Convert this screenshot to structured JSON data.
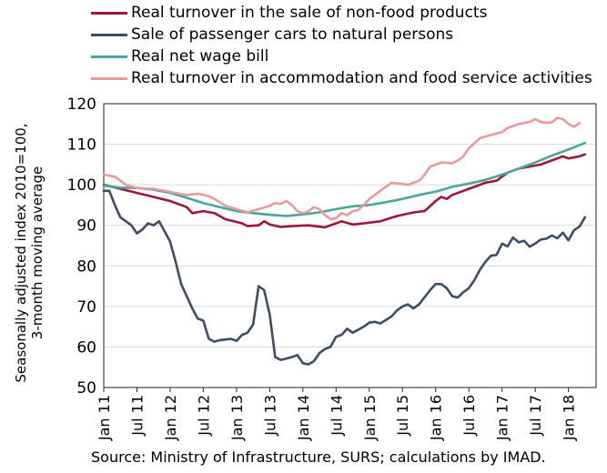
{
  "chart_data": {
    "type": "line",
    "ylabel_lines": [
      "Seasonally adjusted index 2010=100,",
      "3-month moving average"
    ],
    "ylim": [
      50,
      120
    ],
    "yticks": [
      50,
      60,
      70,
      80,
      90,
      100,
      110,
      120
    ],
    "xlim_months": [
      0,
      89
    ],
    "xticks": [
      {
        "m": 0,
        "label": "Jan 11"
      },
      {
        "m": 6,
        "label": "Jul 11"
      },
      {
        "m": 12,
        "label": "Jan 12"
      },
      {
        "m": 18,
        "label": "Jul 12"
      },
      {
        "m": 24,
        "label": "Jan 13"
      },
      {
        "m": 30,
        "label": "Jul 13"
      },
      {
        "m": 36,
        "label": "Jan 14"
      },
      {
        "m": 42,
        "label": "Jul 14"
      },
      {
        "m": 48,
        "label": "Jan 15"
      },
      {
        "m": 54,
        "label": "Jul 15"
      },
      {
        "m": 60,
        "label": "Jan 16"
      },
      {
        "m": 66,
        "label": "Jul 16"
      },
      {
        "m": 72,
        "label": "Jan 17"
      },
      {
        "m": 78,
        "label": "Jul 17"
      },
      {
        "m": 84,
        "label": "Jan 18"
      }
    ],
    "grid": "horizontal",
    "legend_position": "top",
    "series": [
      {
        "name": "Real turnover in the sale of non-food products",
        "color": "#a0153a",
        "points": [
          [
            0,
            100
          ],
          [
            3,
            99
          ],
          [
            6,
            98
          ],
          [
            9,
            97
          ],
          [
            12,
            96
          ],
          [
            15,
            94.5
          ],
          [
            16,
            93
          ],
          [
            18,
            93.5
          ],
          [
            20,
            93
          ],
          [
            22,
            91.5
          ],
          [
            25,
            90.5
          ],
          [
            26,
            89.8
          ],
          [
            28,
            90
          ],
          [
            29,
            91
          ],
          [
            30,
            90.2
          ],
          [
            32,
            89.6
          ],
          [
            34,
            89.8
          ],
          [
            37,
            90
          ],
          [
            40,
            89.5
          ],
          [
            43,
            91
          ],
          [
            45,
            90.2
          ],
          [
            47,
            90.5
          ],
          [
            50,
            91
          ],
          [
            53,
            92.3
          ],
          [
            56,
            93.2
          ],
          [
            58,
            93.5
          ],
          [
            60,
            96
          ],
          [
            61,
            97
          ],
          [
            62,
            96.5
          ],
          [
            63,
            97.5
          ],
          [
            65,
            98.5
          ],
          [
            67,
            99.5
          ],
          [
            69,
            100.5
          ],
          [
            71,
            101
          ],
          [
            72,
            102
          ],
          [
            73,
            103
          ],
          [
            75,
            104
          ],
          [
            77,
            104.5
          ],
          [
            79,
            105
          ],
          [
            81,
            106
          ],
          [
            82,
            106.5
          ],
          [
            83,
            107
          ],
          [
            84,
            106.5
          ],
          [
            86,
            107
          ],
          [
            87,
            107.5
          ]
        ]
      },
      {
        "name": "Sale of passenger cars to natural persons",
        "color": "#3d4d66",
        "points": [
          [
            0,
            98.5
          ],
          [
            1,
            98.5
          ],
          [
            2,
            95
          ],
          [
            3,
            92
          ],
          [
            5,
            90
          ],
          [
            6,
            88
          ],
          [
            7,
            89
          ],
          [
            8,
            90.5
          ],
          [
            9,
            90
          ],
          [
            10,
            91
          ],
          [
            11,
            88.5
          ],
          [
            12,
            86
          ],
          [
            13,
            81
          ],
          [
            14,
            75.5
          ],
          [
            16,
            69.5
          ],
          [
            17,
            67
          ],
          [
            18,
            66.5
          ],
          [
            19,
            62
          ],
          [
            20,
            61.3
          ],
          [
            21,
            61.7
          ],
          [
            23,
            62
          ],
          [
            24,
            61.5
          ],
          [
            25,
            63
          ],
          [
            26,
            63.5
          ],
          [
            27,
            65.5
          ],
          [
            28,
            75
          ],
          [
            29,
            74
          ],
          [
            30,
            68
          ],
          [
            31,
            57.5
          ],
          [
            32,
            56.8
          ],
          [
            34,
            57.5
          ],
          [
            35,
            58
          ],
          [
            36,
            56
          ],
          [
            37,
            55.7
          ],
          [
            38,
            56.5
          ],
          [
            39,
            58.5
          ],
          [
            40,
            59.5
          ],
          [
            41,
            60
          ],
          [
            42,
            62.5
          ],
          [
            43,
            63
          ],
          [
            44,
            64.5
          ],
          [
            45,
            63.5
          ],
          [
            47,
            65
          ],
          [
            48,
            66
          ],
          [
            49,
            66.2
          ],
          [
            50,
            65.8
          ],
          [
            52,
            67.5
          ],
          [
            53,
            69
          ],
          [
            54,
            70
          ],
          [
            55,
            70.5
          ],
          [
            56,
            69.5
          ],
          [
            57,
            70.5
          ],
          [
            59,
            74
          ],
          [
            60,
            75.5
          ],
          [
            61,
            75.5
          ],
          [
            62,
            74.5
          ],
          [
            63,
            72.5
          ],
          [
            64,
            72.2
          ],
          [
            65,
            73.5
          ],
          [
            66,
            74.5
          ],
          [
            67,
            76.5
          ],
          [
            68,
            79
          ],
          [
            69,
            81
          ],
          [
            70,
            82.5
          ],
          [
            71,
            82.7
          ],
          [
            72,
            85.5
          ],
          [
            73,
            84.8
          ],
          [
            74,
            87
          ],
          [
            75,
            85.8
          ],
          [
            76,
            86.2
          ],
          [
            77,
            84.7
          ],
          [
            78,
            85.5
          ],
          [
            79,
            86.5
          ],
          [
            80,
            86.7
          ],
          [
            81,
            87.5
          ],
          [
            82,
            86.8
          ],
          [
            83,
            88.2
          ],
          [
            84,
            86.3
          ],
          [
            85,
            88.8
          ],
          [
            86,
            89.7
          ],
          [
            87,
            92
          ]
        ]
      },
      {
        "name": "Real net wage bill",
        "color": "#4aa59b",
        "points": [
          [
            0,
            99.8
          ],
          [
            3,
            99.3
          ],
          [
            6,
            99.2
          ],
          [
            9,
            98.8
          ],
          [
            12,
            98
          ],
          [
            15,
            96.8
          ],
          [
            18,
            95.5
          ],
          [
            21,
            94.5
          ],
          [
            24,
            93.5
          ],
          [
            27,
            93
          ],
          [
            30,
            92.6
          ],
          [
            33,
            92.3
          ],
          [
            36,
            92.7
          ],
          [
            39,
            93.2
          ],
          [
            42,
            94
          ],
          [
            45,
            94.7
          ],
          [
            48,
            95
          ],
          [
            51,
            95.7
          ],
          [
            54,
            96.5
          ],
          [
            57,
            97.5
          ],
          [
            60,
            98.3
          ],
          [
            63,
            99.5
          ],
          [
            66,
            100.3
          ],
          [
            69,
            101.2
          ],
          [
            72,
            102.5
          ],
          [
            75,
            104
          ],
          [
            78,
            105.5
          ],
          [
            81,
            107.2
          ],
          [
            84,
            108.7
          ],
          [
            87,
            110.3
          ]
        ]
      },
      {
        "name": "Real turnover in accommodation and food service activities",
        "color": "#e89a9c",
        "points": [
          [
            0,
            102.5
          ],
          [
            2,
            102
          ],
          [
            4,
            100
          ],
          [
            6,
            99.2
          ],
          [
            9,
            99
          ],
          [
            11,
            98.5
          ],
          [
            13,
            98
          ],
          [
            15,
            97.5
          ],
          [
            17,
            97.8
          ],
          [
            19,
            97.2
          ],
          [
            20,
            96.5
          ],
          [
            22,
            94.8
          ],
          [
            24,
            94
          ],
          [
            26,
            93.2
          ],
          [
            28,
            94
          ],
          [
            30,
            94.8
          ],
          [
            31,
            95.5
          ],
          [
            32,
            95.3
          ],
          [
            33,
            96
          ],
          [
            34,
            95
          ],
          [
            35,
            93.5
          ],
          [
            36,
            93
          ],
          [
            37,
            93.5
          ],
          [
            38,
            94.5
          ],
          [
            39,
            94
          ],
          [
            40,
            92.5
          ],
          [
            41,
            91.5
          ],
          [
            42,
            91.8
          ],
          [
            43,
            93
          ],
          [
            44,
            92.5
          ],
          [
            45,
            93.5
          ],
          [
            46,
            93.8
          ],
          [
            47,
            95
          ],
          [
            48,
            96.5
          ],
          [
            50,
            98.5
          ],
          [
            52,
            100.5
          ],
          [
            54,
            100.2
          ],
          [
            55,
            100
          ],
          [
            57,
            101
          ],
          [
            58,
            102.5
          ],
          [
            59,
            104.5
          ],
          [
            61,
            105.5
          ],
          [
            63,
            105.3
          ],
          [
            64,
            106
          ],
          [
            65,
            107
          ],
          [
            66,
            109
          ],
          [
            68,
            111.5
          ],
          [
            70,
            112.3
          ],
          [
            72,
            113
          ],
          [
            73,
            114
          ],
          [
            74,
            114.5
          ],
          [
            75,
            115
          ],
          [
            77,
            115.5
          ],
          [
            78,
            116.2
          ],
          [
            79,
            115.5
          ],
          [
            80,
            115.3
          ],
          [
            81,
            115.4
          ],
          [
            82,
            116.5
          ],
          [
            83,
            116.2
          ],
          [
            84,
            115
          ],
          [
            85,
            114.3
          ],
          [
            86,
            115.2
          ]
        ]
      }
    ],
    "source": "Source: Ministry of Infrastructure, SURS; calculations by IMAD."
  }
}
